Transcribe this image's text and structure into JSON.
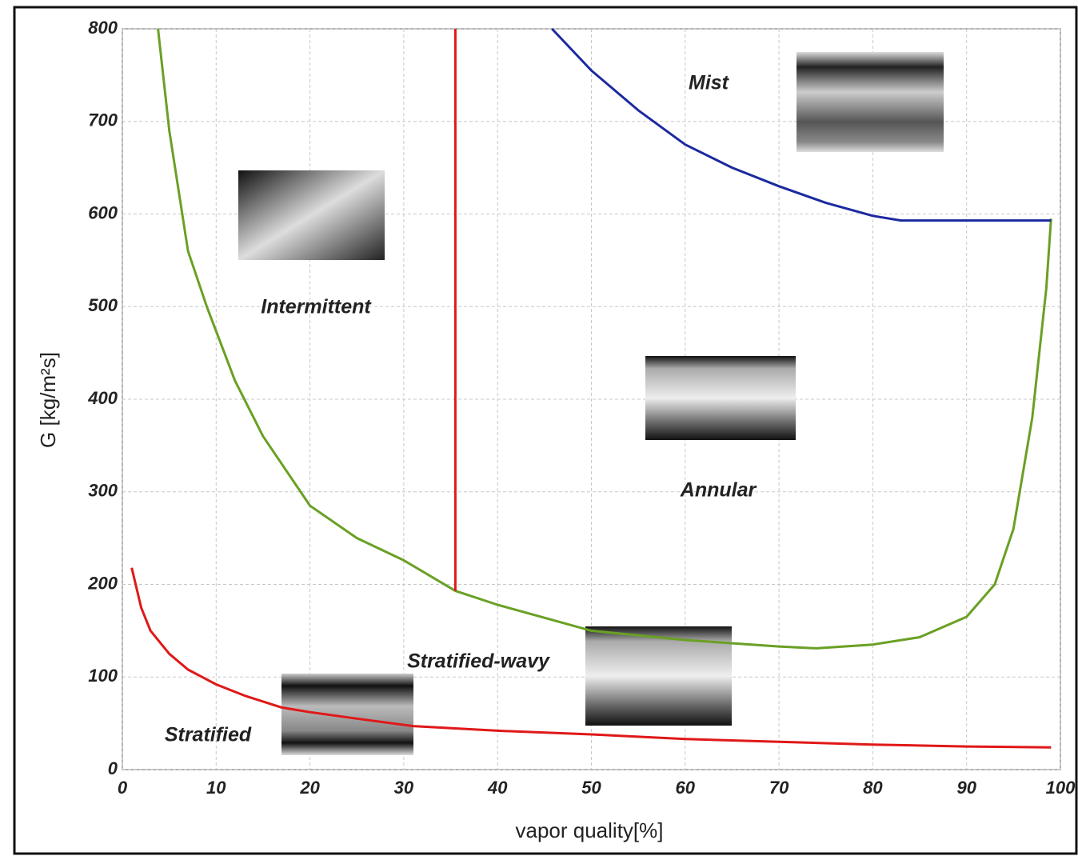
{
  "chart_data": {
    "type": "line",
    "xlabel": "vapor quality[%]",
    "ylabel": "G [kg/m²s]",
    "xlim": [
      0,
      100
    ],
    "ylim": [
      0,
      800
    ],
    "xticks": [
      0,
      10,
      20,
      30,
      40,
      50,
      60,
      70,
      80,
      90,
      100
    ],
    "yticks": [
      0,
      100,
      200,
      300,
      400,
      500,
      600,
      700,
      800
    ],
    "grid": true,
    "annotations": [
      "Mist",
      "Intermittent",
      "Annular",
      "Stratified-wavy",
      "Stratified"
    ],
    "series": [
      {
        "color": "#e01818",
        "x": [
          1,
          2,
          3,
          5,
          7,
          10,
          13,
          17,
          20,
          25,
          31,
          40,
          50,
          60,
          70,
          80,
          90,
          99
        ],
        "values": [
          218,
          175,
          150,
          125,
          108,
          92,
          80,
          67,
          62,
          55,
          47,
          42,
          38,
          33,
          30,
          27,
          25,
          24
        ]
      },
      {
        "color": "#6aa024",
        "x": [
          3.8,
          5,
          7,
          9,
          12,
          15,
          20,
          25,
          30,
          35.5,
          40,
          50,
          60,
          70,
          74,
          80,
          85,
          90,
          93,
          95,
          97,
          98.5,
          99
        ],
        "values": [
          800,
          690,
          560,
          500,
          420,
          360,
          285,
          250,
          226,
          193,
          178,
          150,
          140,
          133,
          131,
          135,
          143,
          165,
          200,
          260,
          380,
          520,
          595
        ]
      },
      {
        "color": "#1c2aa0",
        "x": [
          45.8,
          50,
          55,
          60,
          65,
          70,
          75,
          80,
          83,
          90,
          99
        ],
        "values": [
          800,
          755,
          712,
          675,
          650,
          630,
          612,
          598,
          593,
          593,
          593
        ]
      },
      {
        "color": "#e01818",
        "x": [
          35.5,
          35.5
        ],
        "values": [
          193,
          800
        ]
      }
    ]
  }
}
